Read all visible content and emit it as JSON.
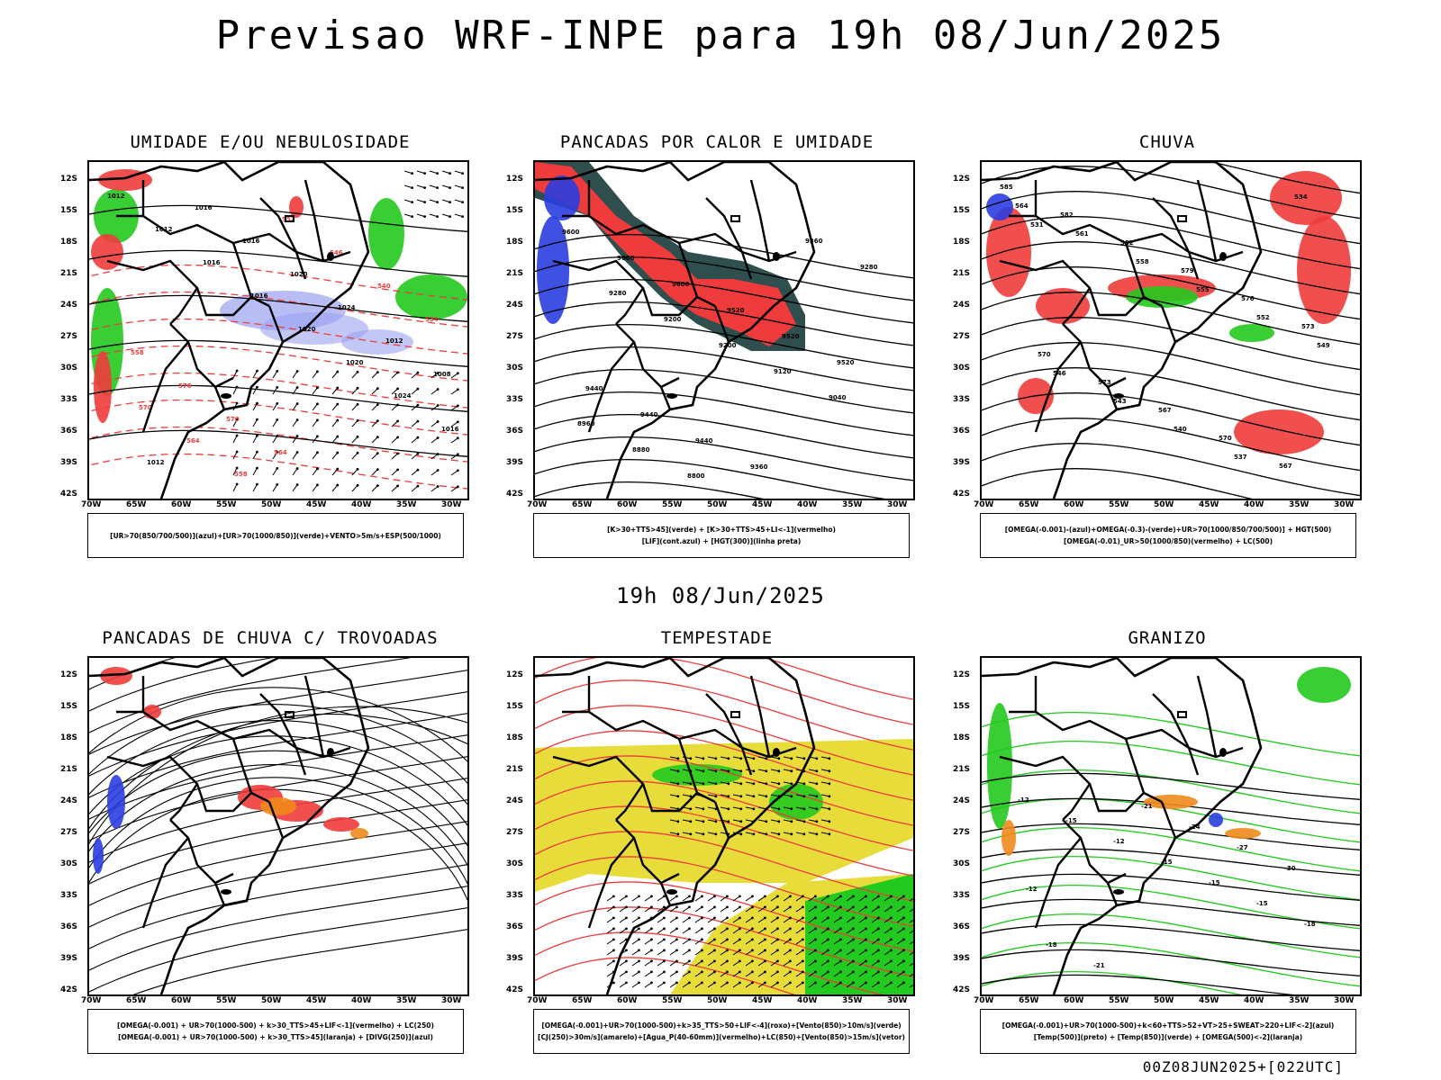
{
  "title": "Previsao WRF-INPE  para 19h 08/Jun/2025",
  "mid_title": "19h 08/Jun/2025",
  "footer": "00Z08JUN2025+[022UTC]",
  "lat_labels": [
    "12S",
    "15S",
    "18S",
    "21S",
    "24S",
    "27S",
    "30S",
    "33S",
    "36S",
    "39S",
    "42S"
  ],
  "lon_labels": [
    "70W",
    "65W",
    "60W",
    "55W",
    "50W",
    "45W",
    "40W",
    "35W",
    "30W"
  ],
  "colors": {
    "red": "#ef3b3b",
    "green": "#22c91e",
    "blue": "#2a3ee0",
    "yellow": "#e8dc3a",
    "orange": "#f08a1c",
    "darkgreen": "#2f4f4f",
    "lavender": "#9aa2f0"
  },
  "panels": [
    {
      "title": "UMIDADE E/OU NEBULOSIDADE",
      "legend": [
        "[UR>70(850/700/500)](azul)+[UR>70(1000/850)](verde)+VENTO>5m/s+ESP(500/1000)"
      ]
    },
    {
      "title": "PANCADAS POR CALOR E UMIDADE",
      "legend": [
        "[K>30+TTS>45](verde) + [K>30+TTS>45+LI<-1](vermelho)",
        "[LIF](cont.azul) + [HGT(300)](linha preta)"
      ]
    },
    {
      "title": "CHUVA",
      "legend": [
        "[OMEGA(-0.001)-(azul)+OMEGA(-0.3)-(verde)+UR>70(1000/850/700/500)] + HGT(500)",
        "[OMEGA(-0.01)_UR>50(1000/850)(vermelho) + LC(500)"
      ]
    },
    {
      "title": "PANCADAS DE CHUVA C/ TROVOADAS",
      "legend": [
        "[OMEGA(-0.001) + UR>70(1000-500) + k>30_TTS>45+LIF<-1](vermelho) + LC(250)",
        "[OMEGA(-0.001) + UR>70(1000-500) + k>30_TTS>45](laranja) + [DIVG(250)](azul)"
      ]
    },
    {
      "title": "TEMPESTADE",
      "legend": [
        "[OMEGA(-0.001)+UR>70(1000-500)+k>35_TTS>50+LIF<-4](roxo)+[Vento(850)>10m/s](verde)",
        "[CJ(250)>30m/s](amarelo)+[Agua_P(40-60mm)](vermelho)+LC(850)+[Vento(850)>15m/s](vetor)"
      ]
    },
    {
      "title": "GRANIZO",
      "legend": [
        "[OMEGA(-0.001)+UR>70(1000-500)+k<60+TTS>52+VT>25+SWEAT>220+LIF<-2](azul)",
        "[Temp(500)](preto) + [Temp(850)](verde) + [OMEGA(500)<-2](laranja)"
      ]
    }
  ],
  "contour_labels": {
    "p1": [
      "1012",
      "1012",
      "1016",
      "1016",
      "1020",
      "1020",
      "1024",
      "1016",
      "1012",
      "1016",
      "1016",
      "1020",
      "1024",
      "1012",
      "1008",
      "570",
      "564",
      "558",
      "552",
      "546",
      "540",
      "534",
      "558",
      "576",
      "570",
      "564"
    ],
    "p2": [
      "9600",
      "9600",
      "9600",
      "9520",
      "9520",
      "9520",
      "9440",
      "9440",
      "9440",
      "9360",
      "9360",
      "9280",
      "9280",
      "9200",
      "9200",
      "9120",
      "9040",
      "8960",
      "8880",
      "8800"
    ],
    "p3": [
      "585",
      "582",
      "582",
      "579",
      "576",
      "573",
      "570",
      "573",
      "567",
      "570",
      "567",
      "564",
      "561",
      "558",
      "555",
      "552",
      "549",
      "546",
      "543",
      "540",
      "537",
      "534",
      "531"
    ],
    "p6": [
      "-12",
      "-15",
      "-12",
      "-15",
      "-15",
      "-15",
      "-18",
      "-18",
      "-21",
      "-21",
      "-24",
      "-27",
      "-30",
      "-12"
    ]
  }
}
